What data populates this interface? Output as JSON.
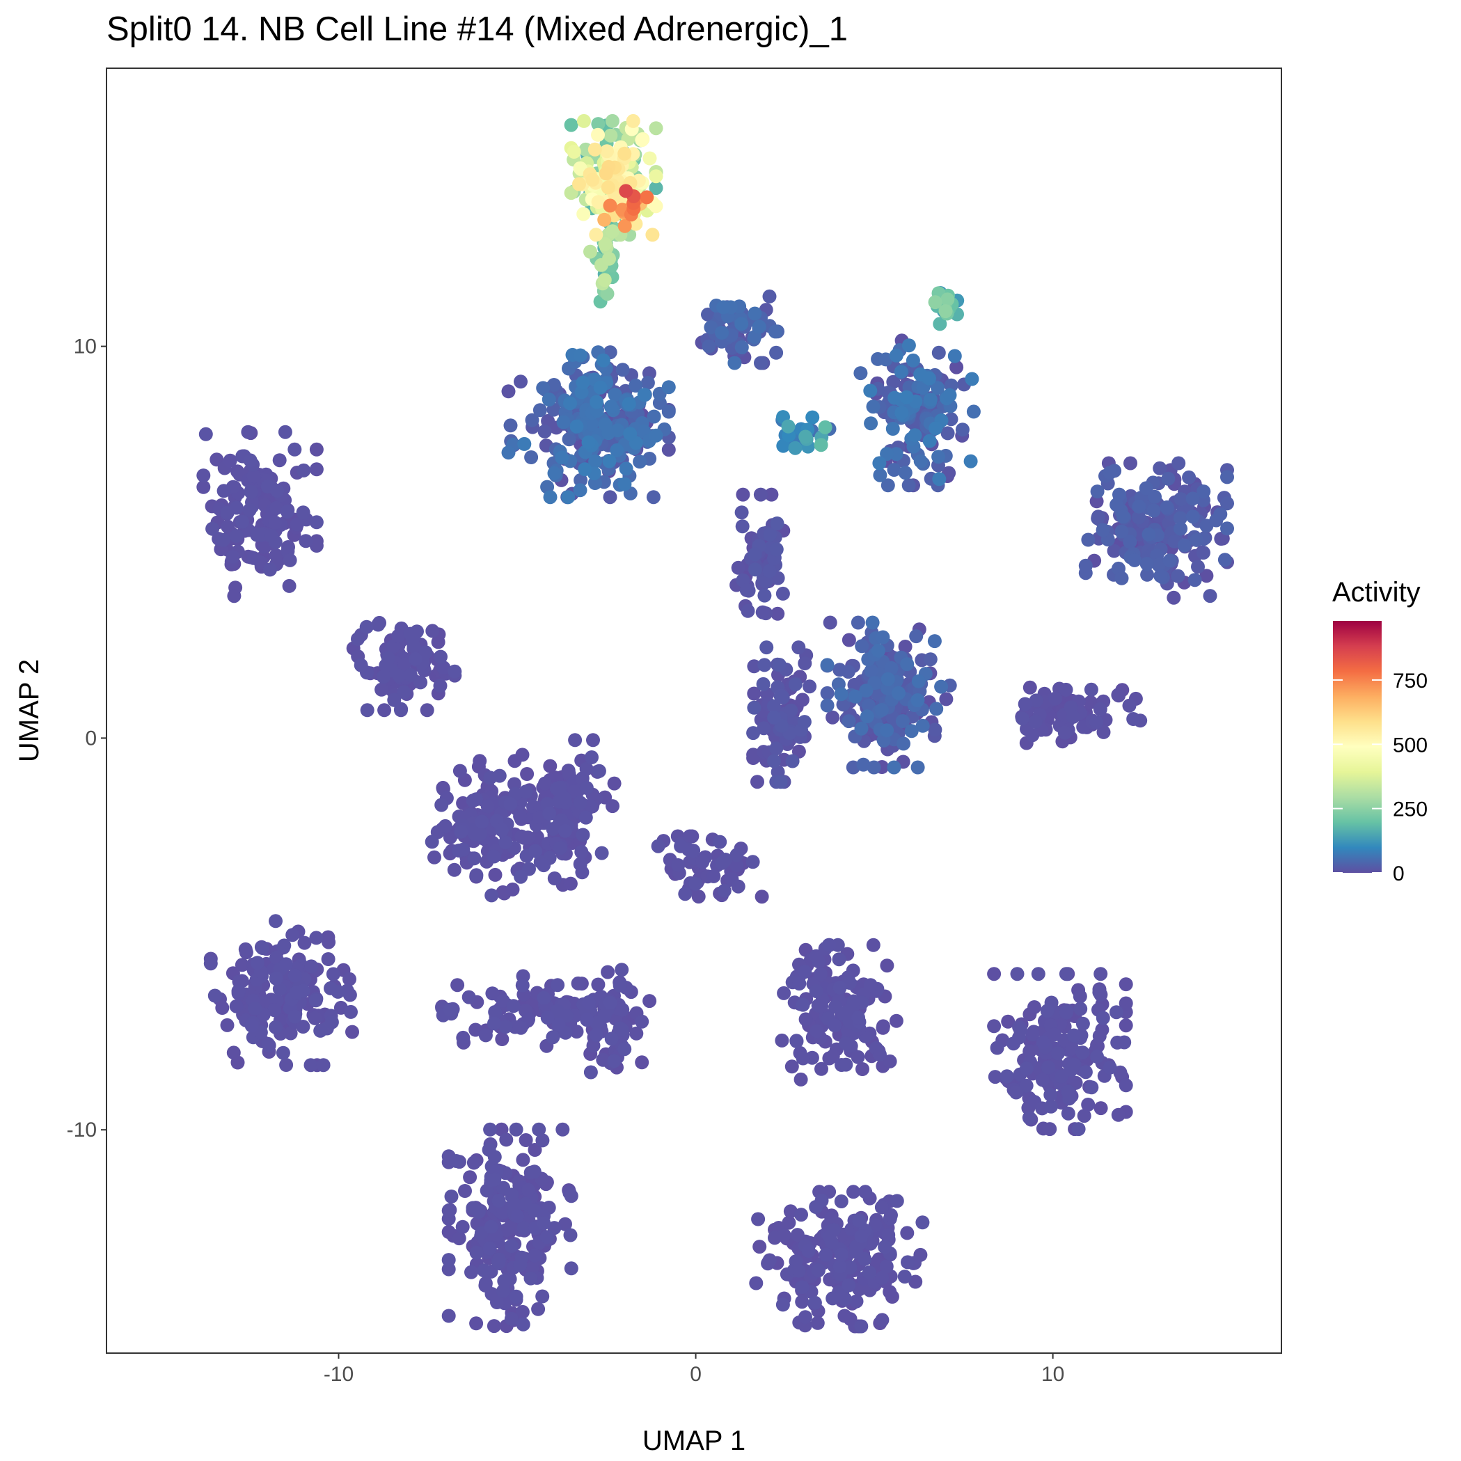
{
  "chart_data": {
    "type": "scatter",
    "title": "Split0 14. NB Cell Line #14 (Mixed Adrenergic)_1",
    "xlabel": "UMAP 1",
    "ylabel": "UMAP 2",
    "xlim": [
      -16.5,
      16.4
    ],
    "ylim": [
      -15.7,
      17.1
    ],
    "xticks": [
      -10,
      0,
      10
    ],
    "yticks": [
      -10,
      0,
      10
    ],
    "xtick_labels": [
      "-10",
      "0",
      "10"
    ],
    "ytick_labels": [
      "-10",
      "0",
      "10"
    ],
    "grid": false,
    "color_scale": {
      "title": "Activity",
      "palette": "Spectral (reversed)",
      "range": [
        0,
        980
      ],
      "ticks": [
        0,
        250,
        500,
        750
      ],
      "tick_labels": [
        "0",
        "250",
        "500",
        "750"
      ],
      "colors": [
        "#5E4FA2",
        "#3288BD",
        "#66C2A5",
        "#ABDDA4",
        "#E6F598",
        "#FFFFBF",
        "#FEE08B",
        "#FDAE61",
        "#F46D43",
        "#D53E4F",
        "#9E0142"
      ],
      "legend_position": "right"
    },
    "clusters": [
      {
        "center": [
          -2.3,
          14.3
        ],
        "spread": [
          0.9,
          1.1
        ],
        "count": 200,
        "activity": [
          150,
          600
        ]
      },
      {
        "center": [
          -1.9,
          13.6
        ],
        "spread": [
          0.5,
          0.4
        ],
        "count": 14,
        "activity": [
          650,
          980
        ]
      },
      {
        "center": [
          -2.6,
          12.2
        ],
        "spread": [
          0.3,
          0.8
        ],
        "count": 25,
        "activity": [
          150,
          350
        ]
      },
      {
        "center": [
          -3.0,
          8.0
        ],
        "spread": [
          1.7,
          1.4
        ],
        "count": 260,
        "activity": [
          0,
          80
        ]
      },
      {
        "center": [
          1.1,
          10.5
        ],
        "spread": [
          0.9,
          0.7
        ],
        "count": 70,
        "activity": [
          0,
          60
        ]
      },
      {
        "center": [
          6.2,
          8.3
        ],
        "spread": [
          1.2,
          1.4
        ],
        "count": 150,
        "activity": [
          0,
          80
        ]
      },
      {
        "center": [
          7.1,
          11.1
        ],
        "spread": [
          0.4,
          0.4
        ],
        "count": 18,
        "activity": [
          100,
          260
        ]
      },
      {
        "center": [
          3.0,
          7.8
        ],
        "spread": [
          0.6,
          0.3
        ],
        "count": 20,
        "activity": [
          50,
          200
        ]
      },
      {
        "center": [
          1.8,
          4.5
        ],
        "spread": [
          0.5,
          1.3
        ],
        "count": 60,
        "activity": [
          0,
          20
        ]
      },
      {
        "center": [
          5.4,
          1.1
        ],
        "spread": [
          1.3,
          1.4
        ],
        "count": 190,
        "activity": [
          0,
          60
        ]
      },
      {
        "center": [
          2.4,
          0.6
        ],
        "spread": [
          0.6,
          1.3
        ],
        "count": 90,
        "activity": [
          0,
          20
        ]
      },
      {
        "center": [
          12.9,
          5.3
        ],
        "spread": [
          1.5,
          1.3
        ],
        "count": 190,
        "activity": [
          0,
          40
        ]
      },
      {
        "center": [
          10.6,
          0.6
        ],
        "spread": [
          1.4,
          0.6
        ],
        "count": 70,
        "activity": [
          0,
          10
        ]
      },
      {
        "center": [
          -12.2,
          5.7
        ],
        "spread": [
          1.2,
          1.6
        ],
        "count": 150,
        "activity": [
          0,
          10
        ]
      },
      {
        "center": [
          -8.2,
          1.9
        ],
        "spread": [
          1.1,
          0.9
        ],
        "count": 90,
        "activity": [
          0,
          10
        ]
      },
      {
        "center": [
          -5.8,
          -2.3
        ],
        "spread": [
          1.2,
          1.3
        ],
        "count": 130,
        "activity": [
          0,
          10
        ]
      },
      {
        "center": [
          -3.6,
          -1.9
        ],
        "spread": [
          1.0,
          1.4
        ],
        "count": 120,
        "activity": [
          0,
          10
        ]
      },
      {
        "center": [
          0.4,
          -3.3
        ],
        "spread": [
          1.1,
          0.6
        ],
        "count": 50,
        "activity": [
          0,
          10
        ]
      },
      {
        "center": [
          -11.6,
          -6.5
        ],
        "spread": [
          1.5,
          1.4
        ],
        "count": 160,
        "activity": [
          0,
          10
        ]
      },
      {
        "center": [
          -4.2,
          -7.0
        ],
        "spread": [
          2.2,
          0.7
        ],
        "count": 110,
        "activity": [
          0,
          10
        ]
      },
      {
        "center": [
          -2.3,
          -7.2
        ],
        "spread": [
          0.6,
          1.3
        ],
        "count": 40,
        "activity": [
          0,
          10
        ]
      },
      {
        "center": [
          4.0,
          -7.0
        ],
        "spread": [
          1.3,
          1.3
        ],
        "count": 140,
        "activity": [
          0,
          10
        ]
      },
      {
        "center": [
          10.2,
          -8.0
        ],
        "spread": [
          1.4,
          1.5
        ],
        "count": 170,
        "activity": [
          0,
          10
        ]
      },
      {
        "center": [
          -5.2,
          -12.5
        ],
        "spread": [
          1.3,
          1.9
        ],
        "count": 210,
        "activity": [
          0,
          10
        ]
      },
      {
        "center": [
          4.0,
          -13.3
        ],
        "spread": [
          1.8,
          1.3
        ],
        "count": 200,
        "activity": [
          0,
          10
        ]
      }
    ]
  }
}
